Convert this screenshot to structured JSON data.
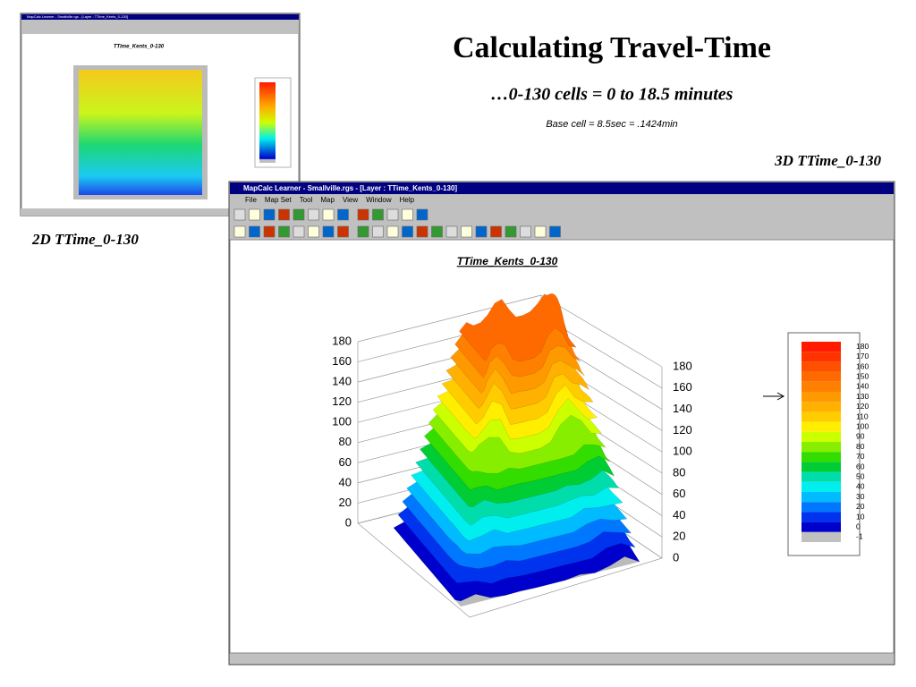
{
  "slide": {
    "title": "Calculating Travel-Time",
    "subtitle": "…0-130 cells = 0 to 18.5 minutes",
    "note": "Base cell = 8.5sec = .1424min",
    "label_3d": "3D TTime_0-130",
    "label_2d": "2D TTime_0-130"
  },
  "small_window": {
    "title": "MapCalc Learner - Smallville.rgs - [Layer : TTime_Kents_0-130]",
    "map_title": "TTime_Kents_0-130"
  },
  "main_window": {
    "title": "MapCalc Learner - Smallville.rgs - [Layer : TTime_Kents_0-130]",
    "menu": [
      "File",
      "Map Set",
      "Tool",
      "Map",
      "View",
      "Window",
      "Help"
    ],
    "map_title": "TTime_Kents_0-130",
    "z_axis_left": [
      180,
      160,
      140,
      120,
      100,
      80,
      60,
      40,
      20,
      0
    ],
    "z_axis_right": [
      180,
      160,
      140,
      120,
      100,
      80,
      60,
      40,
      20,
      0
    ],
    "legend": [
      {
        "label": 180,
        "color": "#ff1a00"
      },
      {
        "label": 170,
        "color": "#ff3300"
      },
      {
        "label": 160,
        "color": "#ff5000"
      },
      {
        "label": 150,
        "color": "#ff6a00"
      },
      {
        "label": 140,
        "color": "#ff8000"
      },
      {
        "label": 130,
        "color": "#ff9900"
      },
      {
        "label": 120,
        "color": "#ffb000"
      },
      {
        "label": 110,
        "color": "#ffcc00"
      },
      {
        "label": 100,
        "color": "#ffee00"
      },
      {
        "label": 90,
        "color": "#ccff00"
      },
      {
        "label": 80,
        "color": "#88ee00"
      },
      {
        "label": 70,
        "color": "#33dd00"
      },
      {
        "label": 60,
        "color": "#00cc33"
      },
      {
        "label": 50,
        "color": "#00ddaa"
      },
      {
        "label": 40,
        "color": "#00eeee"
      },
      {
        "label": 30,
        "color": "#00bbff"
      },
      {
        "label": 20,
        "color": "#0077ff"
      },
      {
        "label": 10,
        "color": "#0033ee"
      },
      {
        "label": 0,
        "color": "#0000cc"
      },
      {
        "label": -1,
        "color": "#c0c0c0"
      }
    ]
  }
}
